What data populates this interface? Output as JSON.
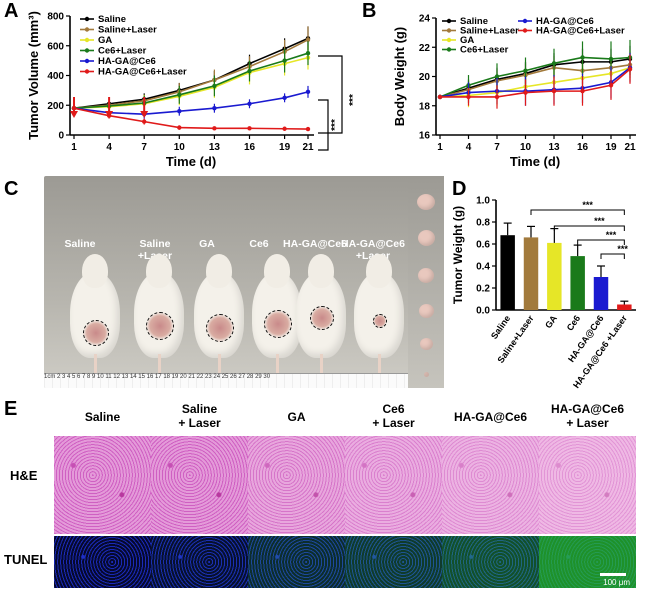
{
  "panels": {
    "A": "A",
    "B": "B",
    "C": "C",
    "D": "D",
    "E": "E"
  },
  "chart_data": [
    {
      "id": "A",
      "type": "line",
      "xlabel": "Time (d)",
      "ylabel": "Tumor Volume (mm³)",
      "x": [
        1,
        4,
        7,
        10,
        13,
        16,
        19,
        21
      ],
      "ylim": [
        0,
        800
      ],
      "yticks": [
        0,
        200,
        400,
        600,
        800
      ],
      "series": [
        {
          "name": "Saline",
          "color": "#000000",
          "values": [
            180,
            210,
            240,
            300,
            370,
            480,
            580,
            650
          ],
          "err": [
            5,
            30,
            40,
            50,
            60,
            60,
            70,
            80
          ]
        },
        {
          "name": "Saline+Laser",
          "color": "#a27a3c",
          "values": [
            180,
            200,
            230,
            290,
            370,
            460,
            560,
            640
          ],
          "err": [
            5,
            30,
            40,
            60,
            70,
            70,
            80,
            90
          ]
        },
        {
          "name": "GA",
          "color": "#e6e627",
          "values": [
            180,
            190,
            210,
            260,
            320,
            420,
            480,
            520
          ],
          "err": [
            5,
            40,
            60,
            60,
            70,
            80,
            80,
            80
          ]
        },
        {
          "name": "Ce6+Laser",
          "color": "#1a7a1a",
          "values": [
            180,
            195,
            215,
            270,
            330,
            430,
            500,
            550
          ],
          "err": [
            5,
            30,
            50,
            60,
            70,
            70,
            80,
            80
          ]
        },
        {
          "name": "HA-GA@Ce6",
          "color": "#1a1ad0",
          "values": [
            180,
            150,
            140,
            160,
            180,
            210,
            250,
            290
          ],
          "err": [
            5,
            20,
            30,
            30,
            30,
            30,
            30,
            40
          ]
        },
        {
          "name": "HA-GA@Ce6+Laser",
          "color": "#e01a1a",
          "values": [
            180,
            130,
            90,
            50,
            45,
            45,
            42,
            40
          ],
          "err": [
            5,
            20,
            20,
            15,
            10,
            10,
            8,
            8
          ]
        }
      ],
      "arrows_at": [
        1,
        4,
        7
      ],
      "sig": [
        "***",
        "***"
      ]
    },
    {
      "id": "B",
      "type": "line",
      "xlabel": "Time (d)",
      "ylabel": "Body Weight (g)",
      "x": [
        1,
        4,
        7,
        10,
        13,
        16,
        19,
        21
      ],
      "ylim": [
        16,
        24
      ],
      "yticks": [
        16,
        18,
        20,
        22,
        24
      ],
      "series": [
        {
          "name": "Saline",
          "color": "#000000",
          "values": [
            18.6,
            19.2,
            19.8,
            20.2,
            20.8,
            21.0,
            21.0,
            21.2
          ],
          "err": [
            0.1,
            0.6,
            0.8,
            0.8,
            0.8,
            0.9,
            0.9,
            0.9
          ]
        },
        {
          "name": "Saline+Laser",
          "color": "#a27a3c",
          "values": [
            18.6,
            19.1,
            19.7,
            20.1,
            20.6,
            20.4,
            20.6,
            20.8
          ],
          "err": [
            0.1,
            0.6,
            0.8,
            0.8,
            0.8,
            0.9,
            0.9,
            0.9
          ]
        },
        {
          "name": "GA",
          "color": "#e6e627",
          "values": [
            18.6,
            18.7,
            18.9,
            19.3,
            19.6,
            19.9,
            20.2,
            20.6
          ],
          "err": [
            0.1,
            0.8,
            0.9,
            0.9,
            0.9,
            0.9,
            0.9,
            0.9
          ]
        },
        {
          "name": "Ce6+Laser",
          "color": "#1a7a1a",
          "values": [
            18.6,
            19.4,
            20.0,
            20.4,
            20.9,
            21.3,
            21.2,
            21.3
          ],
          "err": [
            0.1,
            0.7,
            0.9,
            0.9,
            1.0,
            1.1,
            1.2,
            1.2
          ]
        },
        {
          "name": "HA-GA@Ce6",
          "color": "#1a1ad0",
          "values": [
            18.6,
            18.9,
            19.0,
            19.0,
            19.1,
            19.2,
            19.6,
            20.6
          ],
          "err": [
            0.1,
            0.7,
            0.9,
            1.0,
            1.0,
            1.0,
            1.1,
            1.0
          ]
        },
        {
          "name": "HA-GA@Ce6+Laser",
          "color": "#e01a1a",
          "values": [
            18.6,
            18.6,
            18.6,
            18.9,
            19.0,
            19.0,
            19.4,
            20.5
          ],
          "err": [
            0.1,
            0.6,
            0.8,
            0.9,
            1.0,
            1.0,
            1.0,
            1.0
          ]
        }
      ]
    },
    {
      "id": "D",
      "type": "bar",
      "ylabel": "Tumor Weight (g)",
      "categories": [
        "Saline",
        "Saline+Laser",
        "GA",
        "Ce6",
        "HA-GA@Ce6",
        "HA-GA@Ce6 +Laser"
      ],
      "values": [
        0.68,
        0.66,
        0.61,
        0.49,
        0.3,
        0.05
      ],
      "err": [
        0.11,
        0.1,
        0.13,
        0.1,
        0.1,
        0.03
      ],
      "colors": [
        "#000000",
        "#a27a3c",
        "#e6e627",
        "#1a7a1a",
        "#1a1ad0",
        "#e01a1a"
      ],
      "ylim": [
        0,
        1.0
      ],
      "yticks": [
        "0.0",
        "0.2",
        "0.4",
        "0.6",
        "0.8",
        "1.0"
      ],
      "sig": [
        "***",
        "***",
        "***",
        "***"
      ]
    }
  ],
  "photo": {
    "labels": [
      "Saline",
      "Saline\n+Laser",
      "GA",
      "Ce6",
      "HA-GA@Ce6",
      "HA-GA@Ce6\n+Laser"
    ],
    "ruler_text": "1cm 2 3 4 5 6 7 8 9 10 11 12 13 14 15 16 17 18 19 20 21 22 23 24 25 26 27 28 29 30"
  },
  "histology": {
    "col_titles": [
      "Saline",
      "Saline\n+ Laser",
      "GA",
      "Ce6\n+ Laser",
      "HA-GA@Ce6",
      "HA-GA@Ce6\n+ Laser"
    ],
    "row_titles": [
      "H&E",
      "TUNEL"
    ],
    "scale_label": "100 μm",
    "tunel_green_level": [
      0.0,
      0.05,
      0.25,
      0.35,
      0.5,
      0.95
    ]
  }
}
